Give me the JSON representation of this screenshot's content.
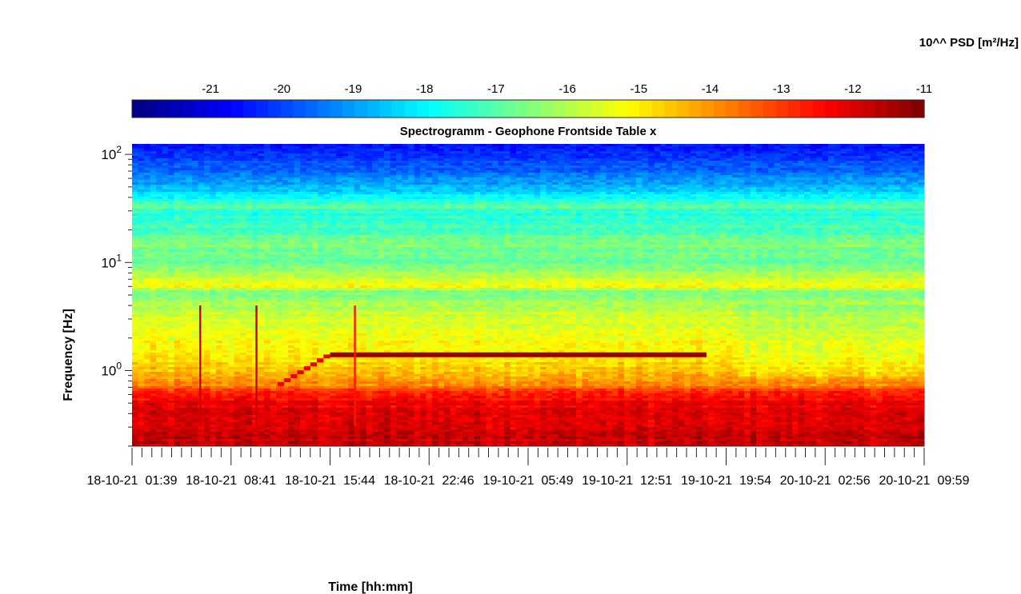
{
  "chart_data": {
    "type": "heatmap",
    "title": "Spectrogramm - Geophone Frontside Table x",
    "xlabel": "Time [hh:mm]",
    "ylabel": "Frequency [Hz]",
    "yscale": "log",
    "ylim": [
      0.2,
      125
    ],
    "y_ticks": [
      {
        "value": 1,
        "base": "10",
        "exp": "0"
      },
      {
        "value": 10,
        "base": "10",
        "exp": "1"
      },
      {
        "value": 100,
        "base": "10",
        "exp": "2"
      }
    ],
    "x_ticks": [
      {
        "date": "18-10-21",
        "time": "01:39"
      },
      {
        "date": "18-10-21",
        "time": "08:41"
      },
      {
        "date": "18-10-21",
        "time": "15:44"
      },
      {
        "date": "18-10-21",
        "time": "22:46"
      },
      {
        "date": "19-10-21",
        "time": "05:49"
      },
      {
        "date": "19-10-21",
        "time": "12:51"
      },
      {
        "date": "19-10-21",
        "time": "19:54"
      },
      {
        "date": "20-10-21",
        "time": "02:56"
      },
      {
        "date": "20-10-21",
        "time": "09:59"
      }
    ],
    "colorbar": {
      "label": "10^^ PSD [m²/Hz]",
      "colormap": "jet",
      "ticks": [
        "-21",
        "-20",
        "-19",
        "-18",
        "-17",
        "-16",
        "-15",
        "-14",
        "-13",
        "-12",
        "-11"
      ],
      "range": [
        -22.1,
        -11
      ]
    },
    "psd_profile_log10": [
      {
        "freq_hz": 0.2,
        "level": -11.7
      },
      {
        "freq_hz": 0.45,
        "level": -12.1
      },
      {
        "freq_hz": 0.6,
        "level": -12.6
      },
      {
        "freq_hz": 0.75,
        "level": -13.9
      },
      {
        "freq_hz": 1.0,
        "level": -14.6
      },
      {
        "freq_hz": 1.5,
        "level": -15.0
      },
      {
        "freq_hz": 3.0,
        "level": -15.6
      },
      {
        "freq_hz": 5.5,
        "level": -16.6
      },
      {
        "freq_hz": 6.0,
        "level": -15.2
      },
      {
        "freq_hz": 10,
        "level": -16.8
      },
      {
        "freq_hz": 15,
        "level": -16.6
      },
      {
        "freq_hz": 20,
        "level": -17.2
      },
      {
        "freq_hz": 30,
        "level": -17.6
      },
      {
        "freq_hz": 33,
        "level": -16.9
      },
      {
        "freq_hz": 45,
        "level": -18.4
      },
      {
        "freq_hz": 70,
        "level": -19.6
      },
      {
        "freq_hz": 125,
        "level": -20.6
      }
    ],
    "features": [
      {
        "kind": "tonal-line",
        "time_start": "18-10-21 15:44",
        "time_end": "19-10-21 18:30",
        "freq_hz": 1.4,
        "level": -11.3
      },
      {
        "kind": "stepped-line",
        "time_start": "18-10-21 12:00",
        "time_end": "18-10-21 15:44",
        "freq_start_hz": 0.75,
        "freq_end_hz": 1.35,
        "level": -12.2
      },
      {
        "kind": "transient",
        "time": "18-10-21 06:30",
        "level": -11.8
      },
      {
        "kind": "transient",
        "time": "18-10-21 10:30",
        "level": -11.8
      },
      {
        "kind": "transient",
        "time": "18-10-21 17:30",
        "level": -12.6
      }
    ]
  }
}
